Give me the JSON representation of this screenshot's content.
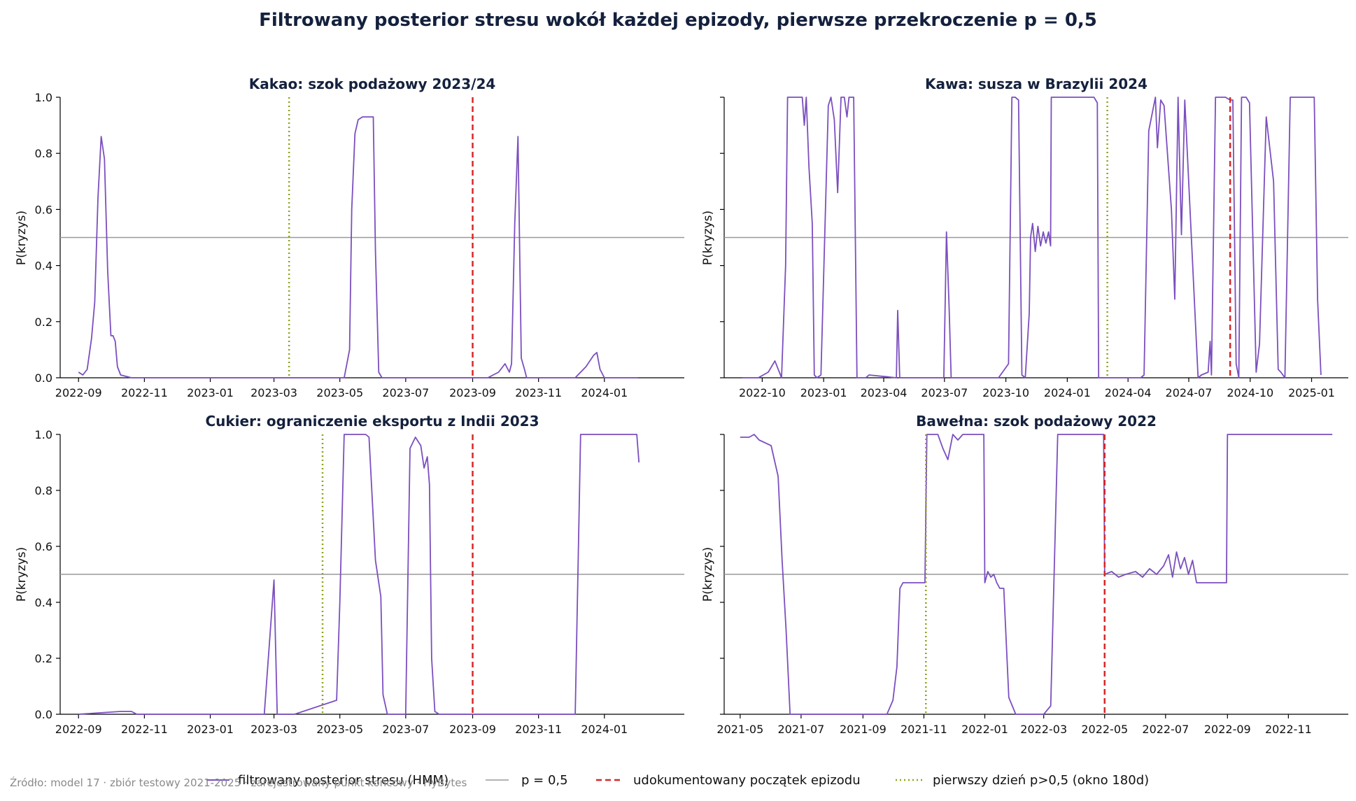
{
  "figure": {
    "title": "Filtrowany posterior stresu wokół każdej epizody, pierwsze przekroczenie p = 0,5",
    "source": "Źródło: model 17 · zbiór testowy 2021-2025 · zarejestrowany punkt końcowy · HyBytes"
  },
  "legend": {
    "items": [
      {
        "label": "filtrowany posterior stresu (HMM)",
        "style": "line",
        "color": "#7b4fbf"
      },
      {
        "label": "p = 0,5",
        "style": "line",
        "color": "#999999"
      },
      {
        "label": "udokumentowany początek epizodu",
        "style": "dashed",
        "color": "#d62728"
      },
      {
        "label": "pierwszy dzień p>0,5 (okno 180d)",
        "style": "dotted",
        "color": "#8fa31a"
      }
    ]
  },
  "colors": {
    "posterior": "#7b4fbf",
    "threshold": "#999999",
    "onset": "#d62728",
    "first_cross": "#8fa31a"
  },
  "chart_data": [
    {
      "type": "line",
      "title": "Kakao: szok podażowy 2023/24",
      "ylabel": "P(kryzys)",
      "xlim": [
        "2022-08-15",
        "2024-03-15"
      ],
      "ylim": [
        0,
        1
      ],
      "yticks": [
        "0.0",
        "0.2",
        "0.4",
        "0.6",
        "0.8",
        "1.0"
      ],
      "xticks": [
        "2022-09",
        "2022-11",
        "2023-01",
        "2023-03",
        "2023-05",
        "2023-07",
        "2023-09",
        "2023-11",
        "2024-01"
      ],
      "threshold": 0.5,
      "onset_date": "2023-09-01",
      "first_cross_date": "2023-03-15",
      "series": [
        {
          "x": [
            "2022-09-01",
            "2022-09-05",
            "2022-09-09",
            "2022-09-13",
            "2022-09-16",
            "2022-09-19",
            "2022-09-22",
            "2022-09-25",
            "2022-09-28",
            "2022-10-01",
            "2022-10-03",
            "2022-10-05",
            "2022-10-07",
            "2022-10-10",
            "2022-10-20",
            "2023-05-05",
            "2023-05-10",
            "2023-05-12",
            "2023-05-15",
            "2023-05-18",
            "2023-05-22",
            "2023-06-01",
            "2023-06-03",
            "2023-06-06",
            "2023-06-09",
            "2023-06-12",
            "2023-06-18",
            "2023-09-15",
            "2023-09-25",
            "2023-10-01",
            "2023-10-05",
            "2023-10-07",
            "2023-10-10",
            "2023-10-13",
            "2023-10-16",
            "2023-10-19",
            "2023-10-21",
            "2023-10-24",
            "2023-11-01",
            "2023-12-05",
            "2023-12-15",
            "2023-12-22",
            "2023-12-25",
            "2023-12-28",
            "2024-01-01",
            "2024-01-10",
            "2024-02-01"
          ],
          "y": [
            0.02,
            0.01,
            0.03,
            0.14,
            0.27,
            0.64,
            0.86,
            0.78,
            0.38,
            0.15,
            0.15,
            0.13,
            0.04,
            0.01,
            0.0,
            0.0,
            0.1,
            0.6,
            0.87,
            0.92,
            0.93,
            0.93,
            0.45,
            0.02,
            0.0,
            0.0,
            0.0,
            0.0,
            0.02,
            0.05,
            0.02,
            0.05,
            0.55,
            0.86,
            0.07,
            0.03,
            0.0,
            0.0,
            0.0,
            0.0,
            0.04,
            0.08,
            0.09,
            0.03,
            0.0,
            0.0,
            0.0
          ]
        }
      ]
    },
    {
      "type": "line",
      "title": "Kawa: susza w Brazylii 2024",
      "ylabel": "P(kryzys)",
      "xlim": [
        "2022-08-05",
        "2025-02-25"
      ],
      "ylim": [
        0,
        1
      ],
      "yticks": [],
      "xticks": [
        "2022-10",
        "2023-01",
        "2023-04",
        "2023-07",
        "2023-10",
        "2024-01",
        "2024-04",
        "2024-07",
        "2024-10",
        "2025-01"
      ],
      "threshold": 0.5,
      "onset_date": "2024-09-01",
      "first_cross_date": "2024-03-01",
      "series": [
        {
          "x": [
            "2022-09-01",
            "2022-09-25",
            "2022-10-10",
            "2022-10-20",
            "2022-10-30",
            "2022-11-05",
            "2022-11-08",
            "2022-11-10",
            "2022-11-30",
            "2022-12-03",
            "2022-12-06",
            "2022-12-10",
            "2022-12-15",
            "2022-12-18",
            "2022-12-22",
            "2022-12-28",
            "2023-01-08",
            "2023-01-12",
            "2023-01-17",
            "2023-01-22",
            "2023-01-27",
            "2023-02-01",
            "2023-02-05",
            "2023-02-08",
            "2023-02-15",
            "2023-02-20",
            "2023-03-05",
            "2023-03-10",
            "2023-04-20",
            "2023-04-22",
            "2023-04-25",
            "2023-05-15",
            "2023-06-30",
            "2023-07-04",
            "2023-07-08",
            "2023-07-11",
            "2023-09-20",
            "2023-10-05",
            "2023-10-10",
            "2023-10-15",
            "2023-10-20",
            "2023-10-25",
            "2023-10-30",
            "2023-11-05",
            "2023-11-07",
            "2023-11-10",
            "2023-11-14",
            "2023-11-18",
            "2023-11-22",
            "2023-11-26",
            "2023-11-30",
            "2023-12-04",
            "2023-12-07",
            "2023-12-08",
            "2024-02-10",
            "2024-02-15",
            "2024-02-17",
            "2024-04-20",
            "2024-04-25",
            "2024-05-02",
            "2024-05-12",
            "2024-05-15",
            "2024-05-20",
            "2024-05-25",
            "2024-06-05",
            "2024-06-10",
            "2024-06-15",
            "2024-06-20",
            "2024-06-25",
            "2024-07-15",
            "2024-07-20",
            "2024-07-30",
            "2024-08-02",
            "2024-08-04",
            "2024-08-10",
            "2024-08-25",
            "2024-09-01",
            "2024-09-05",
            "2024-09-10",
            "2024-09-14",
            "2024-09-18",
            "2024-09-25",
            "2024-09-30",
            "2024-10-10",
            "2024-10-15",
            "2024-10-25",
            "2024-11-05",
            "2024-11-12",
            "2024-11-16",
            "2024-11-22",
            "2024-11-30",
            "2024-12-05",
            "2024-12-25",
            "2025-01-05",
            "2025-01-10",
            "2025-01-15"
          ],
          "y": [
            0.0,
            0.0,
            0.02,
            0.06,
            0.0,
            0.4,
            1.0,
            1.0,
            1.0,
            0.9,
            1.0,
            0.75,
            0.55,
            0.01,
            0.0,
            0.01,
            0.97,
            1.0,
            0.92,
            0.66,
            1.0,
            1.0,
            0.93,
            1.0,
            1.0,
            0.0,
            0.0,
            0.01,
            0.0,
            0.24,
            0.0,
            0.0,
            0.0,
            0.52,
            0.25,
            0.0,
            0.0,
            0.05,
            1.0,
            1.0,
            0.99,
            0.01,
            0.0,
            0.23,
            0.5,
            0.55,
            0.45,
            0.54,
            0.47,
            0.52,
            0.48,
            0.52,
            0.47,
            1.0,
            1.0,
            0.98,
            0.0,
            0.0,
            0.01,
            0.88,
            1.0,
            0.82,
            0.99,
            0.97,
            0.6,
            0.28,
            1.0,
            0.51,
            0.99,
            0.0,
            0.01,
            0.02,
            0.13,
            0.01,
            1.0,
            1.0,
            0.99,
            0.99,
            0.05,
            0.0,
            1.0,
            1.0,
            0.98,
            0.02,
            0.12,
            0.93,
            0.7,
            0.03,
            0.02,
            0.0,
            1.0,
            1.0,
            1.0,
            1.0,
            0.28,
            0.01
          ]
        }
      ]
    },
    {
      "type": "line",
      "title": "Cukier: ograniczenie eksportu z Indii 2023",
      "ylabel": "P(kryzys)",
      "xlim": [
        "2022-08-15",
        "2024-03-15"
      ],
      "ylim": [
        0,
        1
      ],
      "yticks": [
        "0.0",
        "0.2",
        "0.4",
        "0.6",
        "0.8",
        "1.0"
      ],
      "xticks": [
        "2022-09",
        "2022-11",
        "2023-01",
        "2023-03",
        "2023-05",
        "2023-07",
        "2023-09",
        "2023-11",
        "2024-01"
      ],
      "threshold": 0.5,
      "onset_date": "2023-09-01",
      "first_cross_date": "2023-04-15",
      "series": [
        {
          "x": [
            "2022-09-01",
            "2022-10-10",
            "2022-10-20",
            "2022-10-25",
            "2022-11-05",
            "2023-02-20",
            "2023-03-01",
            "2023-03-04",
            "2023-03-07",
            "2023-03-20",
            "2023-04-28",
            "2023-05-01",
            "2023-05-05",
            "2023-05-08",
            "2023-05-25",
            "2023-05-28",
            "2023-06-03",
            "2023-06-08",
            "2023-06-10",
            "2023-06-14",
            "2023-07-01",
            "2023-07-05",
            "2023-07-10",
            "2023-07-15",
            "2023-07-18",
            "2023-07-21",
            "2023-07-23",
            "2023-07-25",
            "2023-07-28",
            "2023-08-01",
            "2023-08-05",
            "2023-12-05",
            "2023-12-10",
            "2024-01-15",
            "2024-01-31",
            "2024-02-02"
          ],
          "y": [
            0.0,
            0.01,
            0.01,
            0.0,
            0.0,
            0.0,
            0.48,
            0.0,
            0.0,
            0.0,
            0.05,
            0.4,
            1.0,
            1.0,
            1.0,
            0.99,
            0.55,
            0.42,
            0.07,
            0.0,
            0.0,
            0.95,
            0.99,
            0.96,
            0.88,
            0.92,
            0.82,
            0.2,
            0.01,
            0.0,
            0.0,
            0.0,
            1.0,
            1.0,
            1.0,
            0.9
          ]
        }
      ]
    },
    {
      "type": "line",
      "title": "Bawełna: szok podażowy 2022",
      "ylabel": "P(kryzys)",
      "xlim": [
        "2021-04-15",
        "2022-12-31"
      ],
      "ylim": [
        0,
        1
      ],
      "yticks": [],
      "xticks": [
        "2021-05",
        "2021-07",
        "2021-09",
        "2021-11",
        "2022-01",
        "2022-03",
        "2022-05",
        "2022-07",
        "2022-09",
        "2022-11"
      ],
      "threshold": 0.5,
      "onset_date": "2022-05-01",
      "first_cross_date": "2021-11-03",
      "series": [
        {
          "x": [
            "2021-05-01",
            "2021-05-10",
            "2021-05-15",
            "2021-05-20",
            "2021-06-01",
            "2021-06-08",
            "2021-06-12",
            "2021-06-16",
            "2021-06-20",
            "2021-06-25",
            "2021-07-10",
            "2021-07-15",
            "2021-09-25",
            "2021-10-01",
            "2021-10-05",
            "2021-10-08",
            "2021-10-11",
            "2021-10-15",
            "2021-11-02",
            "2021-11-04",
            "2021-11-15",
            "2021-11-20",
            "2021-11-25",
            "2021-11-30",
            "2021-12-05",
            "2021-12-10",
            "2021-12-15",
            "2021-12-20",
            "2021-12-31",
            "2022-01-01",
            "2022-01-04",
            "2022-01-07",
            "2022-01-10",
            "2022-01-13",
            "2022-01-16",
            "2022-01-20",
            "2022-01-25",
            "2022-02-01",
            "2022-02-15",
            "2022-03-01",
            "2022-03-08",
            "2022-03-15",
            "2022-03-25",
            "2022-04-30",
            "2022-05-01",
            "2022-05-08",
            "2022-05-15",
            "2022-05-22",
            "2022-06-01",
            "2022-06-08",
            "2022-06-15",
            "2022-06-22",
            "2022-06-29",
            "2022-07-04",
            "2022-07-08",
            "2022-07-12",
            "2022-07-16",
            "2022-07-20",
            "2022-07-24",
            "2022-07-28",
            "2022-08-01",
            "2022-08-05",
            "2022-08-10",
            "2022-08-31",
            "2022-09-01",
            "2022-12-15"
          ],
          "y": [
            0.99,
            0.99,
            1.0,
            0.98,
            0.96,
            0.85,
            0.55,
            0.3,
            0.0,
            0.0,
            0.0,
            0.0,
            0.0,
            0.05,
            0.17,
            0.45,
            0.47,
            0.47,
            0.47,
            1.0,
            1.0,
            0.95,
            0.91,
            1.0,
            0.98,
            1.0,
            1.0,
            1.0,
            1.0,
            0.47,
            0.51,
            0.49,
            0.5,
            0.47,
            0.45,
            0.45,
            0.06,
            0.0,
            0.0,
            0.0,
            0.03,
            1.0,
            1.0,
            1.0,
            0.5,
            0.51,
            0.49,
            0.5,
            0.51,
            0.49,
            0.52,
            0.5,
            0.53,
            0.57,
            0.49,
            0.58,
            0.52,
            0.56,
            0.5,
            0.55,
            0.47,
            0.47,
            0.47,
            0.47,
            1.0,
            1.0
          ]
        }
      ]
    }
  ]
}
